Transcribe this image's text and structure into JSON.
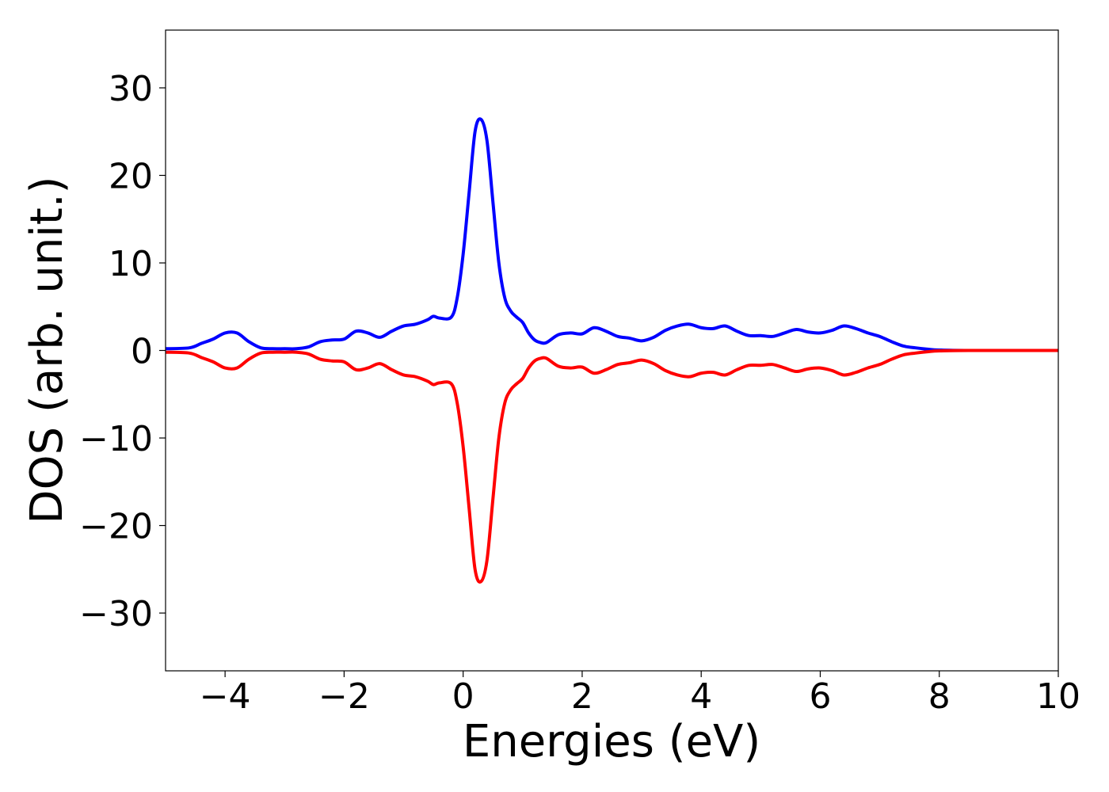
{
  "chart_data": {
    "type": "line",
    "title": "",
    "xlabel": "Energies (eV)",
    "ylabel": "DOS (arb. unit.)",
    "xlim": [
      -5,
      10
    ],
    "ylim": [
      -36.6,
      36.6
    ],
    "xticks": [
      -4,
      -2,
      0,
      2,
      4,
      6,
      8,
      10
    ],
    "xtick_labels": [
      "−4",
      "−2",
      "0",
      "2",
      "4",
      "6",
      "8",
      "10"
    ],
    "yticks": [
      -30,
      -20,
      -10,
      0,
      10,
      20,
      30
    ],
    "ytick_labels": [
      "−30",
      "−20",
      "−10",
      "0",
      "10",
      "20",
      "30"
    ],
    "grid": false,
    "legend": "none",
    "series": [
      {
        "color": "#0000ff",
        "x": [
          -5.0,
          -4.6,
          -4.4,
          -4.2,
          -4.0,
          -3.8,
          -3.6,
          -3.4,
          -3.2,
          -3.0,
          -2.8,
          -2.6,
          -2.4,
          -2.2,
          -2.0,
          -1.8,
          -1.6,
          -1.4,
          -1.2,
          -1.0,
          -0.8,
          -0.6,
          -0.5,
          -0.4,
          -0.2,
          -0.1,
          0.0,
          0.1,
          0.2,
          0.3,
          0.4,
          0.5,
          0.6,
          0.7,
          0.8,
          0.9,
          1.0,
          1.1,
          1.2,
          1.3,
          1.4,
          1.6,
          1.8,
          2.0,
          2.2,
          2.4,
          2.6,
          2.8,
          3.0,
          3.2,
          3.4,
          3.6,
          3.8,
          4.0,
          4.2,
          4.4,
          4.6,
          4.8,
          5.0,
          5.2,
          5.4,
          5.6,
          5.8,
          6.0,
          6.2,
          6.4,
          6.6,
          6.8,
          7.0,
          7.2,
          7.4,
          7.6,
          7.8,
          8.0,
          8.5,
          10.0
        ],
        "y": [
          0.2,
          0.3,
          0.8,
          1.3,
          2.0,
          2.0,
          1.0,
          0.3,
          0.2,
          0.2,
          0.2,
          0.4,
          1.0,
          1.2,
          1.3,
          2.2,
          2.0,
          1.5,
          2.2,
          2.8,
          3.0,
          3.5,
          3.9,
          3.7,
          3.8,
          6.0,
          11.0,
          18.0,
          25.0,
          26.4,
          24.0,
          17.0,
          10.0,
          6.0,
          4.5,
          3.8,
          3.2,
          2.0,
          1.2,
          0.9,
          0.9,
          1.8,
          2.0,
          1.9,
          2.6,
          2.2,
          1.6,
          1.4,
          1.1,
          1.5,
          2.3,
          2.8,
          3.0,
          2.6,
          2.5,
          2.8,
          2.2,
          1.7,
          1.7,
          1.6,
          2.0,
          2.4,
          2.1,
          2.0,
          2.3,
          2.8,
          2.5,
          2.0,
          1.6,
          1.0,
          0.5,
          0.3,
          0.15,
          0.05,
          0.0,
          0.0
        ]
      },
      {
        "color": "#ff0000",
        "x": [
          -5.0,
          -4.6,
          -4.4,
          -4.2,
          -4.0,
          -3.8,
          -3.6,
          -3.4,
          -3.2,
          -3.0,
          -2.8,
          -2.6,
          -2.4,
          -2.2,
          -2.0,
          -1.8,
          -1.6,
          -1.4,
          -1.2,
          -1.0,
          -0.8,
          -0.6,
          -0.5,
          -0.4,
          -0.2,
          -0.1,
          0.0,
          0.1,
          0.2,
          0.3,
          0.4,
          0.5,
          0.6,
          0.7,
          0.8,
          0.9,
          1.0,
          1.1,
          1.2,
          1.3,
          1.4,
          1.6,
          1.8,
          2.0,
          2.2,
          2.4,
          2.6,
          2.8,
          3.0,
          3.2,
          3.4,
          3.6,
          3.8,
          4.0,
          4.2,
          4.4,
          4.6,
          4.8,
          5.0,
          5.2,
          5.4,
          5.6,
          5.8,
          6.0,
          6.2,
          6.4,
          6.6,
          6.8,
          7.0,
          7.2,
          7.4,
          7.6,
          7.8,
          8.0,
          8.5,
          10.0
        ],
        "y": [
          -0.2,
          -0.3,
          -0.8,
          -1.3,
          -2.0,
          -2.0,
          -1.0,
          -0.3,
          -0.2,
          -0.2,
          -0.2,
          -0.4,
          -1.0,
          -1.2,
          -1.3,
          -2.2,
          -2.0,
          -1.5,
          -2.2,
          -2.8,
          -3.0,
          -3.5,
          -3.9,
          -3.7,
          -3.8,
          -6.0,
          -11.0,
          -18.0,
          -25.0,
          -26.4,
          -24.0,
          -17.0,
          -10.0,
          -6.0,
          -4.5,
          -3.8,
          -3.2,
          -2.0,
          -1.2,
          -0.9,
          -0.9,
          -1.8,
          -2.0,
          -1.9,
          -2.6,
          -2.2,
          -1.6,
          -1.4,
          -1.1,
          -1.5,
          -2.3,
          -2.8,
          -3.0,
          -2.6,
          -2.5,
          -2.8,
          -2.2,
          -1.7,
          -1.7,
          -1.6,
          -2.0,
          -2.4,
          -2.1,
          -2.0,
          -2.3,
          -2.8,
          -2.5,
          -2.0,
          -1.6,
          -1.0,
          -0.5,
          -0.3,
          -0.15,
          -0.05,
          0.0,
          0.0
        ]
      }
    ]
  }
}
